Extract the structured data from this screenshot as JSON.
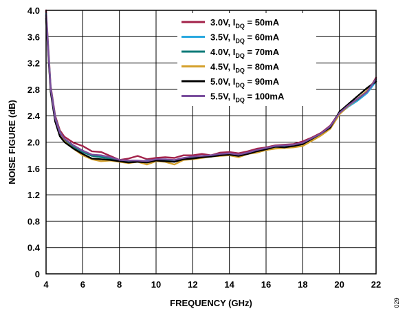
{
  "figure_id": "029",
  "chart_data": {
    "type": "line",
    "xlabel": "FREQUENCY (GHz)",
    "ylabel": "NOISE FIGURE (dB)",
    "xlim": [
      4,
      22
    ],
    "ylim": [
      0,
      4.0
    ],
    "x_ticks": [
      "4",
      "6",
      "8",
      "10",
      "12",
      "14",
      "16",
      "18",
      "20",
      "22"
    ],
    "y_ticks": [
      "0",
      "0.4",
      "0.8",
      "1.2",
      "1.6",
      "2.0",
      "2.4",
      "2.8",
      "3.2",
      "3.6",
      "4.0"
    ],
    "grid": true,
    "legend_position": "top-right",
    "x": [
      4.0,
      4.25,
      4.5,
      4.75,
      5.0,
      5.5,
      6.0,
      6.5,
      7.0,
      7.5,
      8.0,
      8.5,
      9.0,
      9.5,
      10.0,
      10.5,
      11.0,
      11.5,
      12.0,
      12.5,
      13.0,
      13.5,
      14.0,
      14.5,
      15.0,
      15.5,
      16.0,
      16.5,
      17.0,
      17.5,
      18.0,
      18.5,
      19.0,
      19.5,
      20.0,
      20.5,
      21.0,
      21.5,
      22.0
    ],
    "series": [
      {
        "name_main": "3.0V, I",
        "name_sub": "DQ",
        "name_tail": " = 50mA",
        "color": "#a3224a",
        "values": [
          4.0,
          2.85,
          2.4,
          2.18,
          2.08,
          1.99,
          1.94,
          1.86,
          1.85,
          1.79,
          1.73,
          1.75,
          1.79,
          1.74,
          1.76,
          1.77,
          1.76,
          1.8,
          1.8,
          1.82,
          1.8,
          1.84,
          1.85,
          1.83,
          1.86,
          1.9,
          1.92,
          1.95,
          1.96,
          1.97,
          2.01,
          2.07,
          2.14,
          2.25,
          2.45,
          2.55,
          2.65,
          2.75,
          2.98
        ]
      },
      {
        "name_main": "3.5V, I",
        "name_sub": "DQ",
        "name_tail": " = 60mA",
        "color": "#29a8df",
        "values": [
          3.95,
          2.82,
          2.37,
          2.15,
          2.04,
          1.94,
          1.86,
          1.8,
          1.79,
          1.76,
          1.72,
          1.71,
          1.7,
          1.72,
          1.73,
          1.73,
          1.71,
          1.74,
          1.76,
          1.77,
          1.78,
          1.8,
          1.82,
          1.8,
          1.83,
          1.86,
          1.89,
          1.92,
          1.93,
          1.94,
          1.98,
          2.05,
          2.12,
          2.22,
          2.43,
          2.54,
          2.63,
          2.74,
          2.92
        ]
      },
      {
        "name_main": "4.0V, I",
        "name_sub": "DQ",
        "name_tail": " = 70mA",
        "color": "#0d7a78",
        "values": [
          3.92,
          2.8,
          2.35,
          2.13,
          2.03,
          1.93,
          1.85,
          1.79,
          1.77,
          1.75,
          1.71,
          1.7,
          1.71,
          1.7,
          1.72,
          1.72,
          1.72,
          1.75,
          1.76,
          1.78,
          1.79,
          1.8,
          1.81,
          1.8,
          1.82,
          1.86,
          1.88,
          1.91,
          1.92,
          1.93,
          1.97,
          2.04,
          2.12,
          2.23,
          2.44,
          2.56,
          2.65,
          2.77,
          2.95
        ]
      },
      {
        "name_main": "4.5V, I",
        "name_sub": "DQ",
        "name_tail": " = 80mA",
        "color": "#d4a02b",
        "values": [
          3.9,
          2.78,
          2.33,
          2.11,
          2.01,
          1.9,
          1.8,
          1.74,
          1.71,
          1.72,
          1.7,
          1.68,
          1.7,
          1.66,
          1.71,
          1.7,
          1.66,
          1.73,
          1.74,
          1.76,
          1.78,
          1.79,
          1.8,
          1.77,
          1.82,
          1.84,
          1.88,
          1.9,
          1.91,
          1.92,
          1.94,
          2.02,
          2.1,
          2.2,
          2.42,
          2.55,
          2.66,
          2.78,
          2.96
        ]
      },
      {
        "name_main": "5.0V, I",
        "name_sub": "DQ",
        "name_tail": " = 90mA",
        "color": "#000000",
        "values": [
          3.88,
          2.76,
          2.31,
          2.09,
          2.0,
          1.9,
          1.82,
          1.75,
          1.74,
          1.73,
          1.71,
          1.69,
          1.7,
          1.69,
          1.72,
          1.71,
          1.7,
          1.74,
          1.75,
          1.77,
          1.78,
          1.8,
          1.81,
          1.79,
          1.82,
          1.86,
          1.89,
          1.93,
          1.92,
          1.94,
          1.97,
          2.05,
          2.13,
          2.22,
          2.46,
          2.58,
          2.7,
          2.82,
          2.92
        ]
      },
      {
        "name_main": "5.5V, I",
        "name_sub": "DQ",
        "name_tail": " = 100mA",
        "color": "#7b4f9e",
        "values": [
          3.93,
          2.81,
          2.36,
          2.14,
          2.05,
          1.95,
          1.87,
          1.81,
          1.8,
          1.77,
          1.73,
          1.72,
          1.72,
          1.71,
          1.74,
          1.74,
          1.73,
          1.76,
          1.78,
          1.79,
          1.8,
          1.82,
          1.83,
          1.81,
          1.84,
          1.88,
          1.91,
          1.94,
          1.95,
          1.96,
          1.99,
          2.06,
          2.13,
          2.24,
          2.44,
          2.56,
          2.66,
          2.76,
          2.96
        ]
      }
    ]
  }
}
